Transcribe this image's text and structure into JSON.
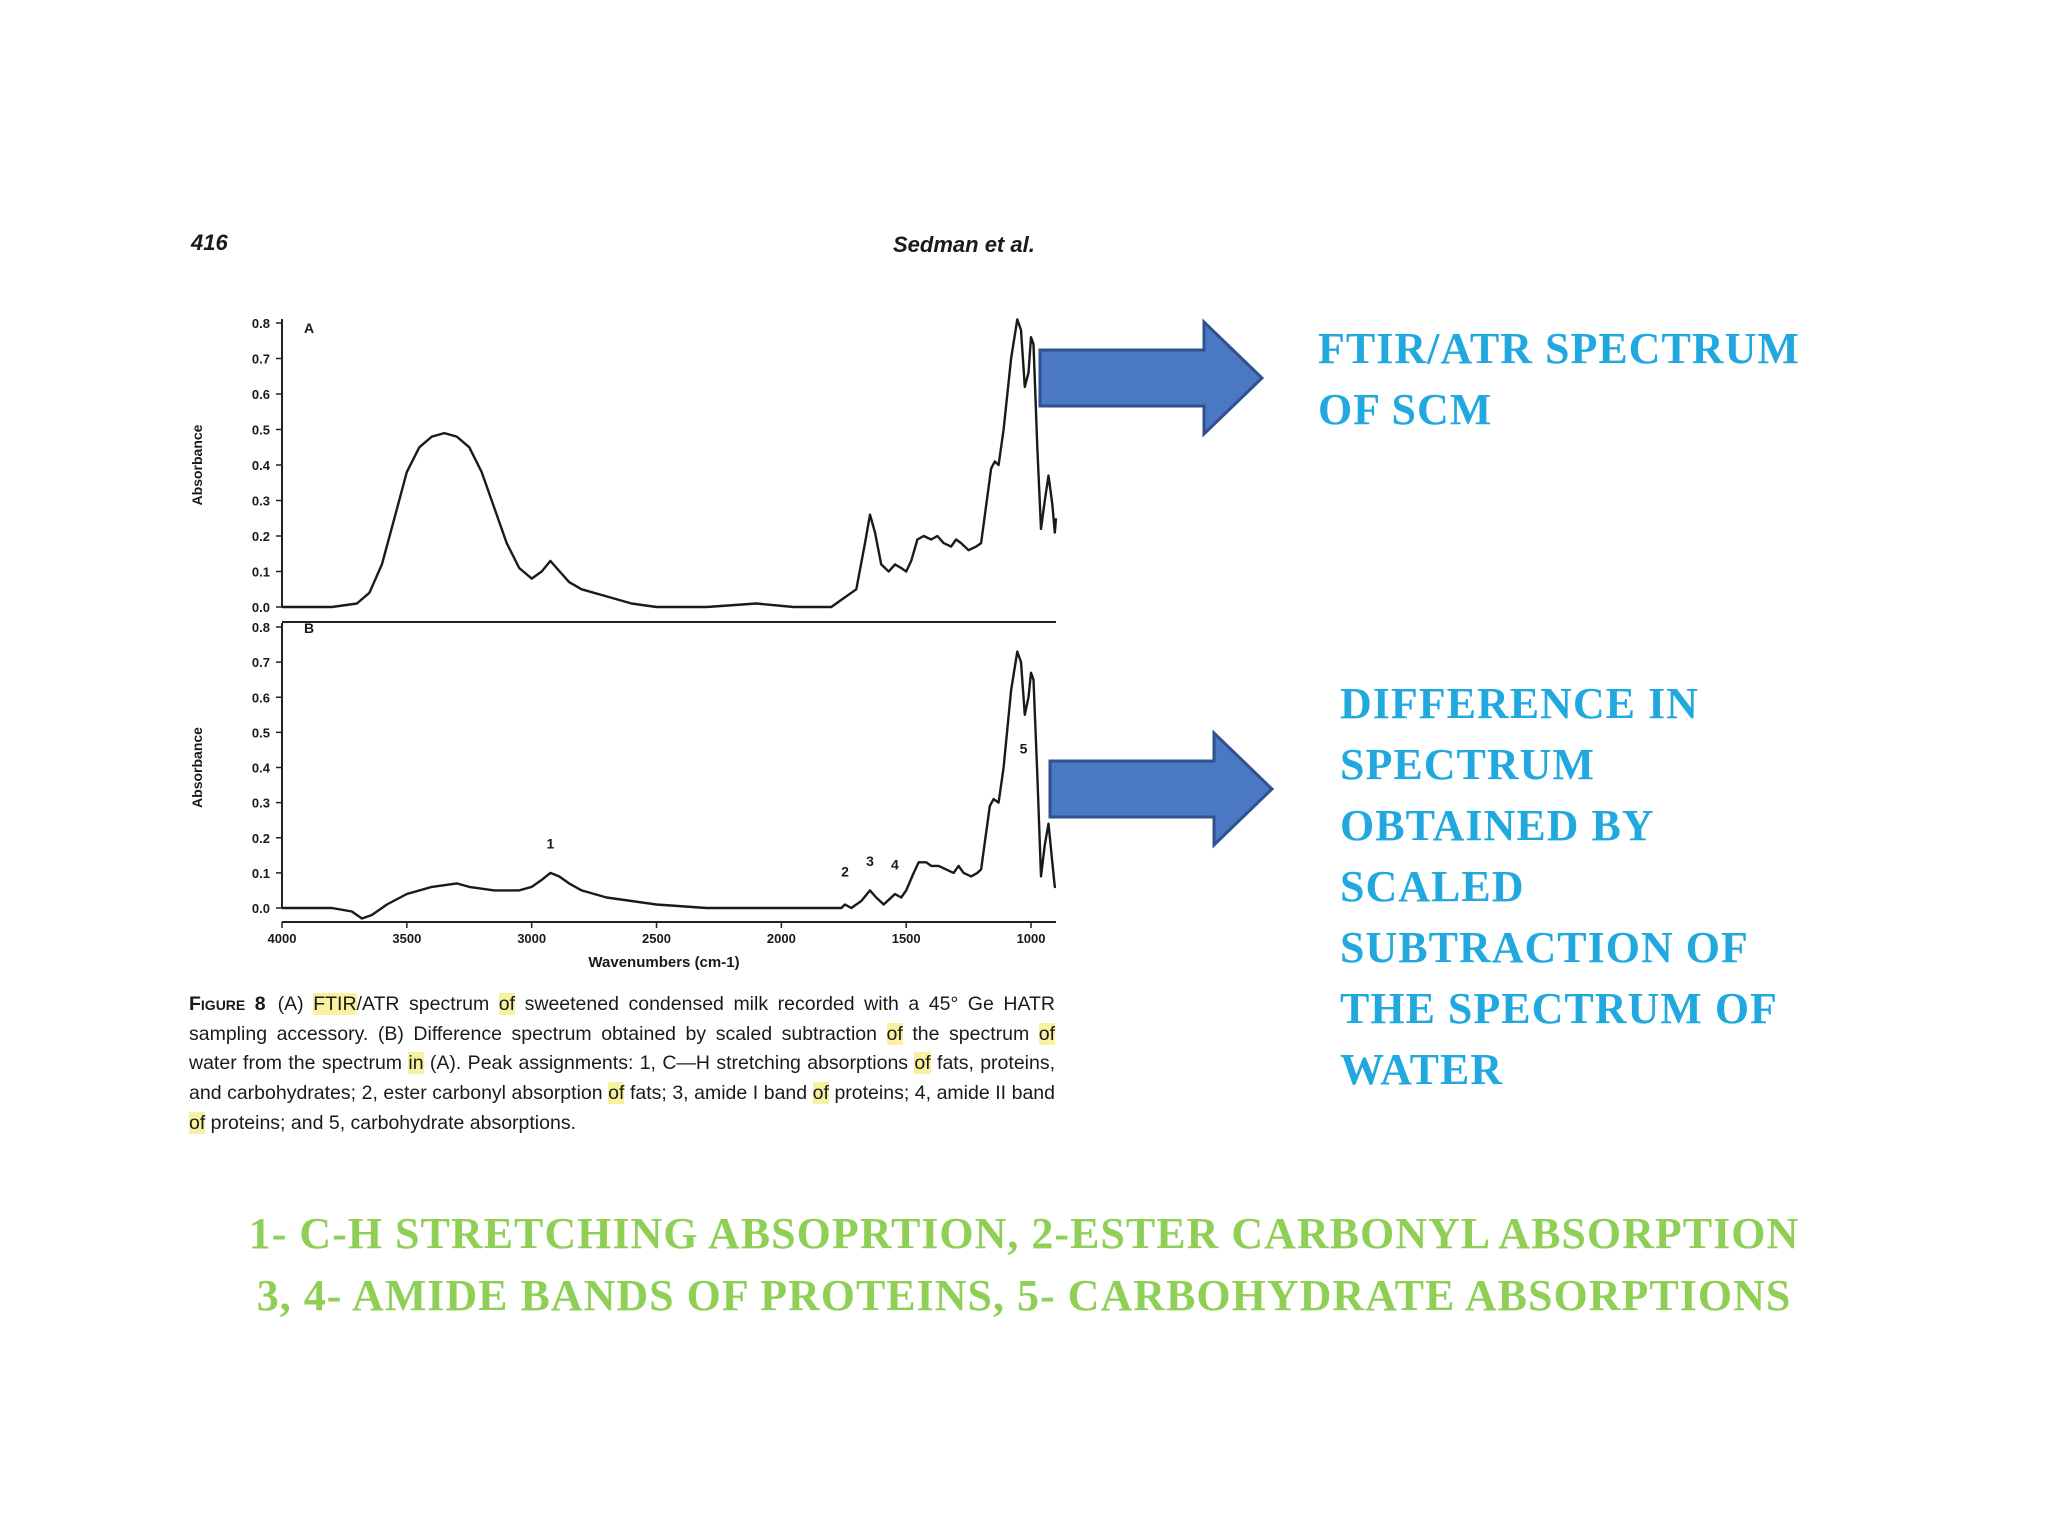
{
  "page": {
    "number": "416",
    "authors": "Sedman et al."
  },
  "annotations": {
    "top": "FTIR/ATR SPECTRUM\nOF SCM",
    "bottom": "DIFFERENCE IN\nSPECTRUM\nOBTAINED BY\nSCALED\nSUBTRACTION OF\nTHE SPECTRUM OF\nWATER",
    "summary_line1": "1- C-H STRETCHING ABSOPRTION, 2-ESTER CARBONYL ABSORPTION",
    "summary_line2": "3, 4- AMIDE BANDS OF PROTEINS, 5- CARBOHYDRATE ABSORPTIONS"
  },
  "caption": {
    "label": "Figure 8",
    "segments": [
      {
        "t": "(A) ",
        "hl": false
      },
      {
        "t": "FTIR",
        "hl": true
      },
      {
        "t": "/ATR spectrum ",
        "hl": false
      },
      {
        "t": "of",
        "hl": true
      },
      {
        "t": " sweetened condensed milk recorded with a 45° Ge HATR sampling accessory. (B) Difference spectrum obtained by scaled subtraction ",
        "hl": false
      },
      {
        "t": "of",
        "hl": true
      },
      {
        "t": " the spectrum ",
        "hl": false
      },
      {
        "t": "of",
        "hl": true
      },
      {
        "t": " water from the spectrum ",
        "hl": false
      },
      {
        "t": "in",
        "hl": true
      },
      {
        "t": " (A). Peak assignments: 1, C—H stretching absorptions ",
        "hl": false
      },
      {
        "t": "of",
        "hl": true
      },
      {
        "t": " fats, proteins, and carbohydrates; 2, ester carbonyl absorption ",
        "hl": false
      },
      {
        "t": "of",
        "hl": true
      },
      {
        "t": " fats; 3, amide I band ",
        "hl": false
      },
      {
        "t": "of",
        "hl": true
      },
      {
        "t": " proteins; 4, amide II band ",
        "hl": false
      },
      {
        "t": "of",
        "hl": true
      },
      {
        "t": " proteins; and 5, carbohydrate absorptions.",
        "hl": false
      }
    ]
  },
  "colors": {
    "annotation_blue": "#21a9df",
    "annotation_green": "#8fcf56",
    "arrow_fill": "#4a78c2",
    "arrow_stroke": "#2f528f",
    "highlight": "#f7f1a0"
  },
  "chart_data": [
    {
      "type": "line",
      "panel_label": "A",
      "xlabel": "Wavenumbers (cm-1)",
      "ylabel": "Absorbance",
      "xlim": [
        4000,
        900
      ],
      "x_reversed": true,
      "ylim": [
        0,
        0.8
      ],
      "yticks": [
        "0.0",
        "0.1",
        "0.2",
        "0.3",
        "0.4",
        "0.5",
        "0.6",
        "0.7",
        "0.8"
      ],
      "xticks": [
        "4000",
        "3500",
        "3000",
        "2500",
        "2000",
        "1500",
        "1000"
      ],
      "grid": false,
      "series": [
        {
          "points": [
            [
              4000,
              0.0
            ],
            [
              3800,
              0.0
            ],
            [
              3700,
              0.01
            ],
            [
              3650,
              0.04
            ],
            [
              3600,
              0.12
            ],
            [
              3550,
              0.25
            ],
            [
              3500,
              0.38
            ],
            [
              3450,
              0.45
            ],
            [
              3400,
              0.48
            ],
            [
              3350,
              0.49
            ],
            [
              3300,
              0.48
            ],
            [
              3250,
              0.45
            ],
            [
              3200,
              0.38
            ],
            [
              3150,
              0.28
            ],
            [
              3100,
              0.18
            ],
            [
              3050,
              0.11
            ],
            [
              3000,
              0.08
            ],
            [
              2960,
              0.1
            ],
            [
              2925,
              0.13
            ],
            [
              2900,
              0.11
            ],
            [
              2850,
              0.07
            ],
            [
              2800,
              0.05
            ],
            [
              2700,
              0.03
            ],
            [
              2600,
              0.01
            ],
            [
              2500,
              0.0
            ],
            [
              2300,
              0.0
            ],
            [
              2100,
              0.01
            ],
            [
              1950,
              0.0
            ],
            [
              1800,
              0.0
            ],
            [
              1760,
              0.02
            ],
            [
              1700,
              0.05
            ],
            [
              1665,
              0.18
            ],
            [
              1645,
              0.26
            ],
            [
              1625,
              0.21
            ],
            [
              1600,
              0.12
            ],
            [
              1570,
              0.1
            ],
            [
              1545,
              0.12
            ],
            [
              1520,
              0.11
            ],
            [
              1500,
              0.1
            ],
            [
              1480,
              0.13
            ],
            [
              1455,
              0.19
            ],
            [
              1430,
              0.2
            ],
            [
              1400,
              0.19
            ],
            [
              1375,
              0.2
            ],
            [
              1350,
              0.18
            ],
            [
              1320,
              0.17
            ],
            [
              1300,
              0.19
            ],
            [
              1280,
              0.18
            ],
            [
              1250,
              0.16
            ],
            [
              1220,
              0.17
            ],
            [
              1200,
              0.18
            ],
            [
              1160,
              0.39
            ],
            [
              1145,
              0.41
            ],
            [
              1130,
              0.4
            ],
            [
              1110,
              0.5
            ],
            [
              1080,
              0.7
            ],
            [
              1055,
              0.81
            ],
            [
              1040,
              0.78
            ],
            [
              1025,
              0.62
            ],
            [
              1010,
              0.66
            ],
            [
              1000,
              0.76
            ],
            [
              990,
              0.74
            ],
            [
              975,
              0.45
            ],
            [
              960,
              0.22
            ],
            [
              945,
              0.3
            ],
            [
              930,
              0.37
            ],
            [
              915,
              0.29
            ],
            [
              905,
              0.21
            ],
            [
              900,
              0.25
            ]
          ]
        }
      ]
    },
    {
      "type": "line",
      "panel_label": "B",
      "xlabel": "Wavenumbers (cm-1)",
      "ylabel": "Absorbance",
      "xlim": [
        4000,
        900
      ],
      "x_reversed": true,
      "ylim": [
        0,
        0.8
      ],
      "yticks": [
        "0.0",
        "0.1",
        "0.2",
        "0.3",
        "0.4",
        "0.5",
        "0.6",
        "0.7",
        "0.8"
      ],
      "xticks": [
        "4000",
        "3500",
        "3000",
        "2500",
        "2000",
        "1500",
        "1000"
      ],
      "grid": false,
      "peak_labels": [
        {
          "label": "1",
          "x": 2925,
          "y": 0.13
        },
        {
          "label": "2",
          "x": 1745,
          "y": 0.05
        },
        {
          "label": "3",
          "x": 1645,
          "y": 0.08
        },
        {
          "label": "4",
          "x": 1545,
          "y": 0.07
        },
        {
          "label": "5",
          "x": 1030,
          "y": 0.4
        }
      ],
      "series": [
        {
          "points": [
            [
              4000,
              0.0
            ],
            [
              3800,
              0.0
            ],
            [
              3720,
              -0.01
            ],
            [
              3680,
              -0.03
            ],
            [
              3640,
              -0.02
            ],
            [
              3580,
              0.01
            ],
            [
              3500,
              0.04
            ],
            [
              3400,
              0.06
            ],
            [
              3300,
              0.07
            ],
            [
              3250,
              0.06
            ],
            [
              3150,
              0.05
            ],
            [
              3050,
              0.05
            ],
            [
              3000,
              0.06
            ],
            [
              2960,
              0.08
            ],
            [
              2925,
              0.1
            ],
            [
              2890,
              0.09
            ],
            [
              2850,
              0.07
            ],
            [
              2800,
              0.05
            ],
            [
              2700,
              0.03
            ],
            [
              2600,
              0.02
            ],
            [
              2500,
              0.01
            ],
            [
              2300,
              0.0
            ],
            [
              2100,
              0.0
            ],
            [
              1900,
              0.0
            ],
            [
              1760,
              0.0
            ],
            [
              1745,
              0.01
            ],
            [
              1720,
              0.0
            ],
            [
              1680,
              0.02
            ],
            [
              1645,
              0.05
            ],
            [
              1620,
              0.03
            ],
            [
              1590,
              0.01
            ],
            [
              1545,
              0.04
            ],
            [
              1520,
              0.03
            ],
            [
              1500,
              0.05
            ],
            [
              1470,
              0.1
            ],
            [
              1450,
              0.13
            ],
            [
              1420,
              0.13
            ],
            [
              1400,
              0.12
            ],
            [
              1370,
              0.12
            ],
            [
              1340,
              0.11
            ],
            [
              1310,
              0.1
            ],
            [
              1290,
              0.12
            ],
            [
              1270,
              0.1
            ],
            [
              1240,
              0.09
            ],
            [
              1215,
              0.1
            ],
            [
              1200,
              0.11
            ],
            [
              1165,
              0.29
            ],
            [
              1150,
              0.31
            ],
            [
              1130,
              0.3
            ],
            [
              1110,
              0.4
            ],
            [
              1080,
              0.62
            ],
            [
              1055,
              0.73
            ],
            [
              1040,
              0.7
            ],
            [
              1025,
              0.55
            ],
            [
              1010,
              0.6
            ],
            [
              1000,
              0.67
            ],
            [
              990,
              0.65
            ],
            [
              975,
              0.38
            ],
            [
              960,
              0.09
            ],
            [
              945,
              0.18
            ],
            [
              930,
              0.24
            ],
            [
              915,
              0.13
            ],
            [
              905,
              0.06
            ],
            [
              900,
              0.06
            ]
          ]
        }
      ]
    }
  ]
}
